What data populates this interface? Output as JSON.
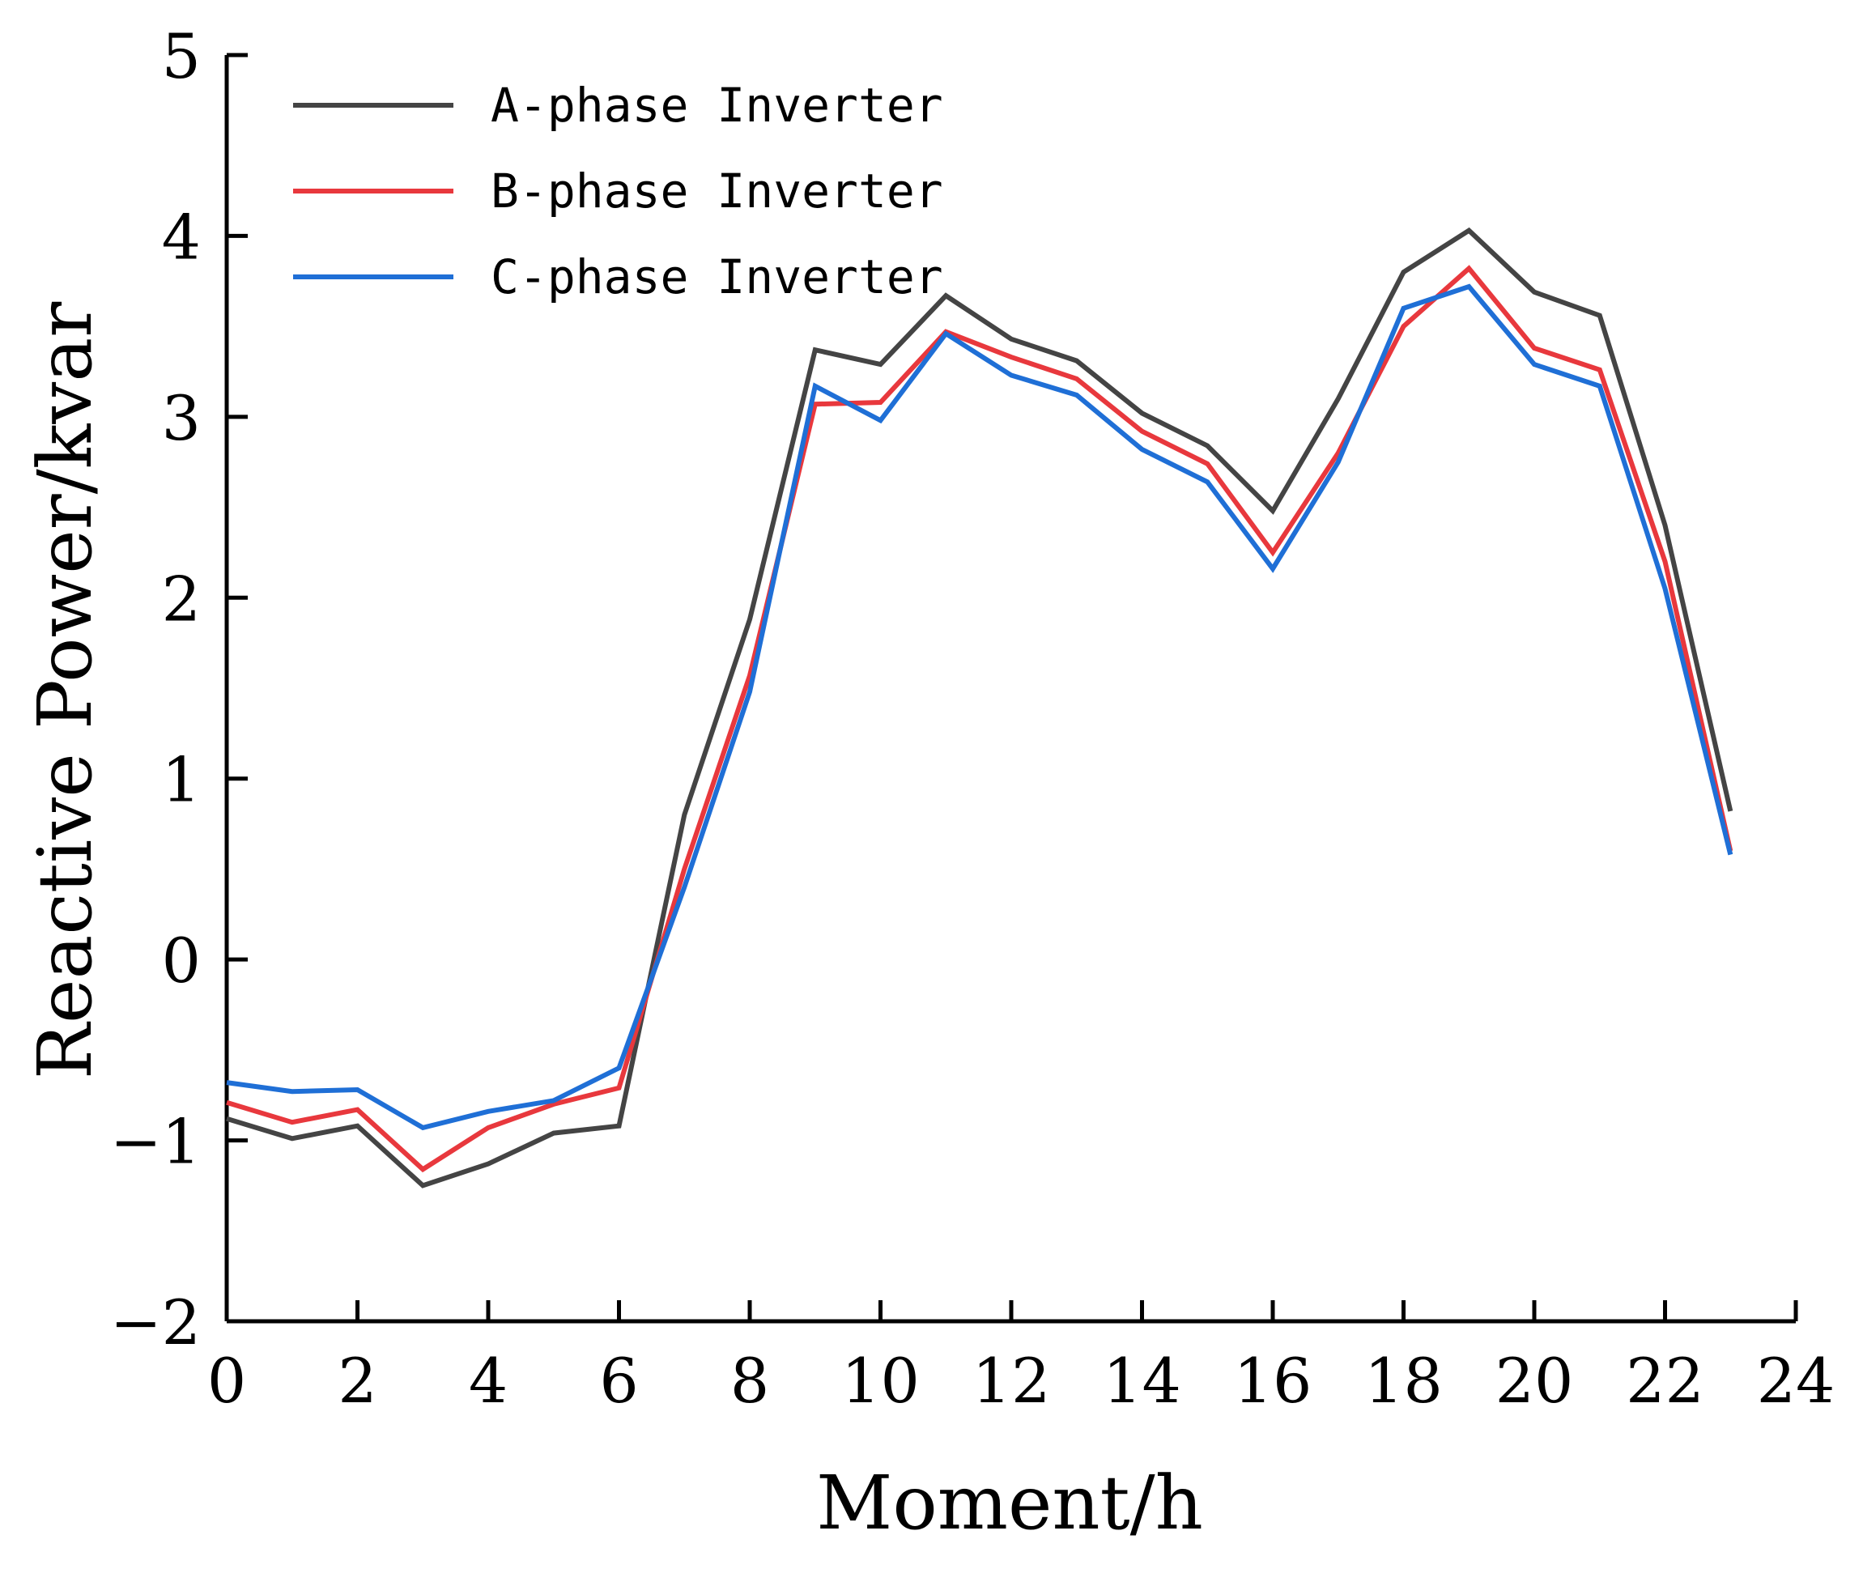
{
  "chart_data": {
    "type": "line",
    "title": "",
    "xlabel": "Moment/h",
    "ylabel": "Reactive Power/kvar",
    "xlim": [
      0,
      24
    ],
    "ylim": [
      -2,
      5
    ],
    "xticks": [
      "0",
      "2",
      "4",
      "6",
      "8",
      "10",
      "12",
      "14",
      "16",
      "18",
      "20",
      "22",
      "24"
    ],
    "yticks": [
      "-2",
      "-1",
      "0",
      "1",
      "2",
      "3",
      "4",
      "5"
    ],
    "grid": false,
    "legend_position": "top-left",
    "x": [
      0,
      1,
      2,
      3,
      4,
      5,
      6,
      7,
      8,
      9,
      10,
      11,
      12,
      13,
      14,
      15,
      16,
      17,
      18,
      19,
      20,
      21,
      22,
      23
    ],
    "series": [
      {
        "name": "A-phase Inverter",
        "color": "#444444",
        "values": [
          -0.88,
          -0.99,
          -0.92,
          -1.25,
          -1.13,
          -0.96,
          -0.92,
          0.8,
          1.88,
          3.37,
          3.29,
          3.67,
          3.43,
          3.31,
          3.02,
          2.84,
          2.48,
          3.1,
          3.8,
          4.03,
          3.69,
          3.56,
          2.4,
          0.82
        ]
      },
      {
        "name": "B-phase Inverter",
        "color": "#e8383d",
        "values": [
          -0.79,
          -0.9,
          -0.83,
          -1.16,
          -0.93,
          -0.8,
          -0.71,
          0.5,
          1.57,
          3.07,
          3.08,
          3.47,
          3.33,
          3.21,
          2.92,
          2.74,
          2.25,
          2.8,
          3.5,
          3.82,
          3.38,
          3.26,
          2.2,
          0.6
        ]
      },
      {
        "name": "C-phase Inverter",
        "color": "#1f6fd6",
        "values": [
          -0.68,
          -0.73,
          -0.72,
          -0.93,
          -0.84,
          -0.78,
          -0.6,
          0.4,
          1.48,
          3.17,
          2.98,
          3.46,
          3.23,
          3.12,
          2.82,
          2.64,
          2.16,
          2.75,
          3.6,
          3.72,
          3.29,
          3.17,
          2.05,
          0.58
        ]
      }
    ]
  }
}
